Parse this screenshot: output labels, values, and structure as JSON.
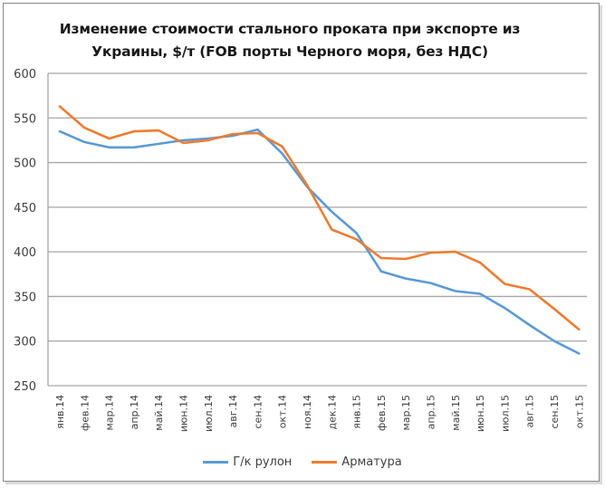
{
  "chart_data": {
    "type": "line",
    "title": "Изменение стоимости стального проката при экспорте из Украины, $/т (FOB порты Черного моря, без НДС)",
    "title_lines": [
      "Изменение стоимости стального проката при экспорте из",
      "Украины, $/т (FOB порты Черного моря, без НДС)"
    ],
    "xlabel": "",
    "ylabel": "",
    "ylim": [
      250,
      600
    ],
    "yticks": [
      250,
      300,
      350,
      400,
      450,
      500,
      550,
      600
    ],
    "grid": true,
    "legend_position": "bottom",
    "categories": [
      "янв.14",
      "фев.14",
      "мар.14",
      "апр.14",
      "май.14",
      "июн.14",
      "июл.14",
      "авг.14",
      "сен.14",
      "окт.14",
      "ноя.14",
      "дек.14",
      "янв.15",
      "фев.15",
      "мар.15",
      "апр.15",
      "май.15",
      "июн.15",
      "июл.15",
      "авг.15",
      "сен.15",
      "окт.15"
    ],
    "series": [
      {
        "name": "Г/к рулон",
        "color": "#5b9bd5",
        "values": [
          535,
          523,
          517,
          517,
          521,
          525,
          527,
          530,
          537,
          510,
          473,
          445,
          421,
          378,
          370,
          365,
          356,
          353,
          337,
          318,
          300,
          286
        ]
      },
      {
        "name": "Арматура",
        "color": "#ed7d31",
        "values": [
          563,
          539,
          527,
          535,
          536,
          522,
          525,
          532,
          533,
          518,
          475,
          425,
          414,
          393,
          392,
          399,
          400,
          388,
          364,
          358,
          336,
          313
        ]
      }
    ]
  },
  "colors": {
    "gridline": "#a6a6a6",
    "axis_text": "#404040",
    "title_text": "#1a1a1a"
  }
}
